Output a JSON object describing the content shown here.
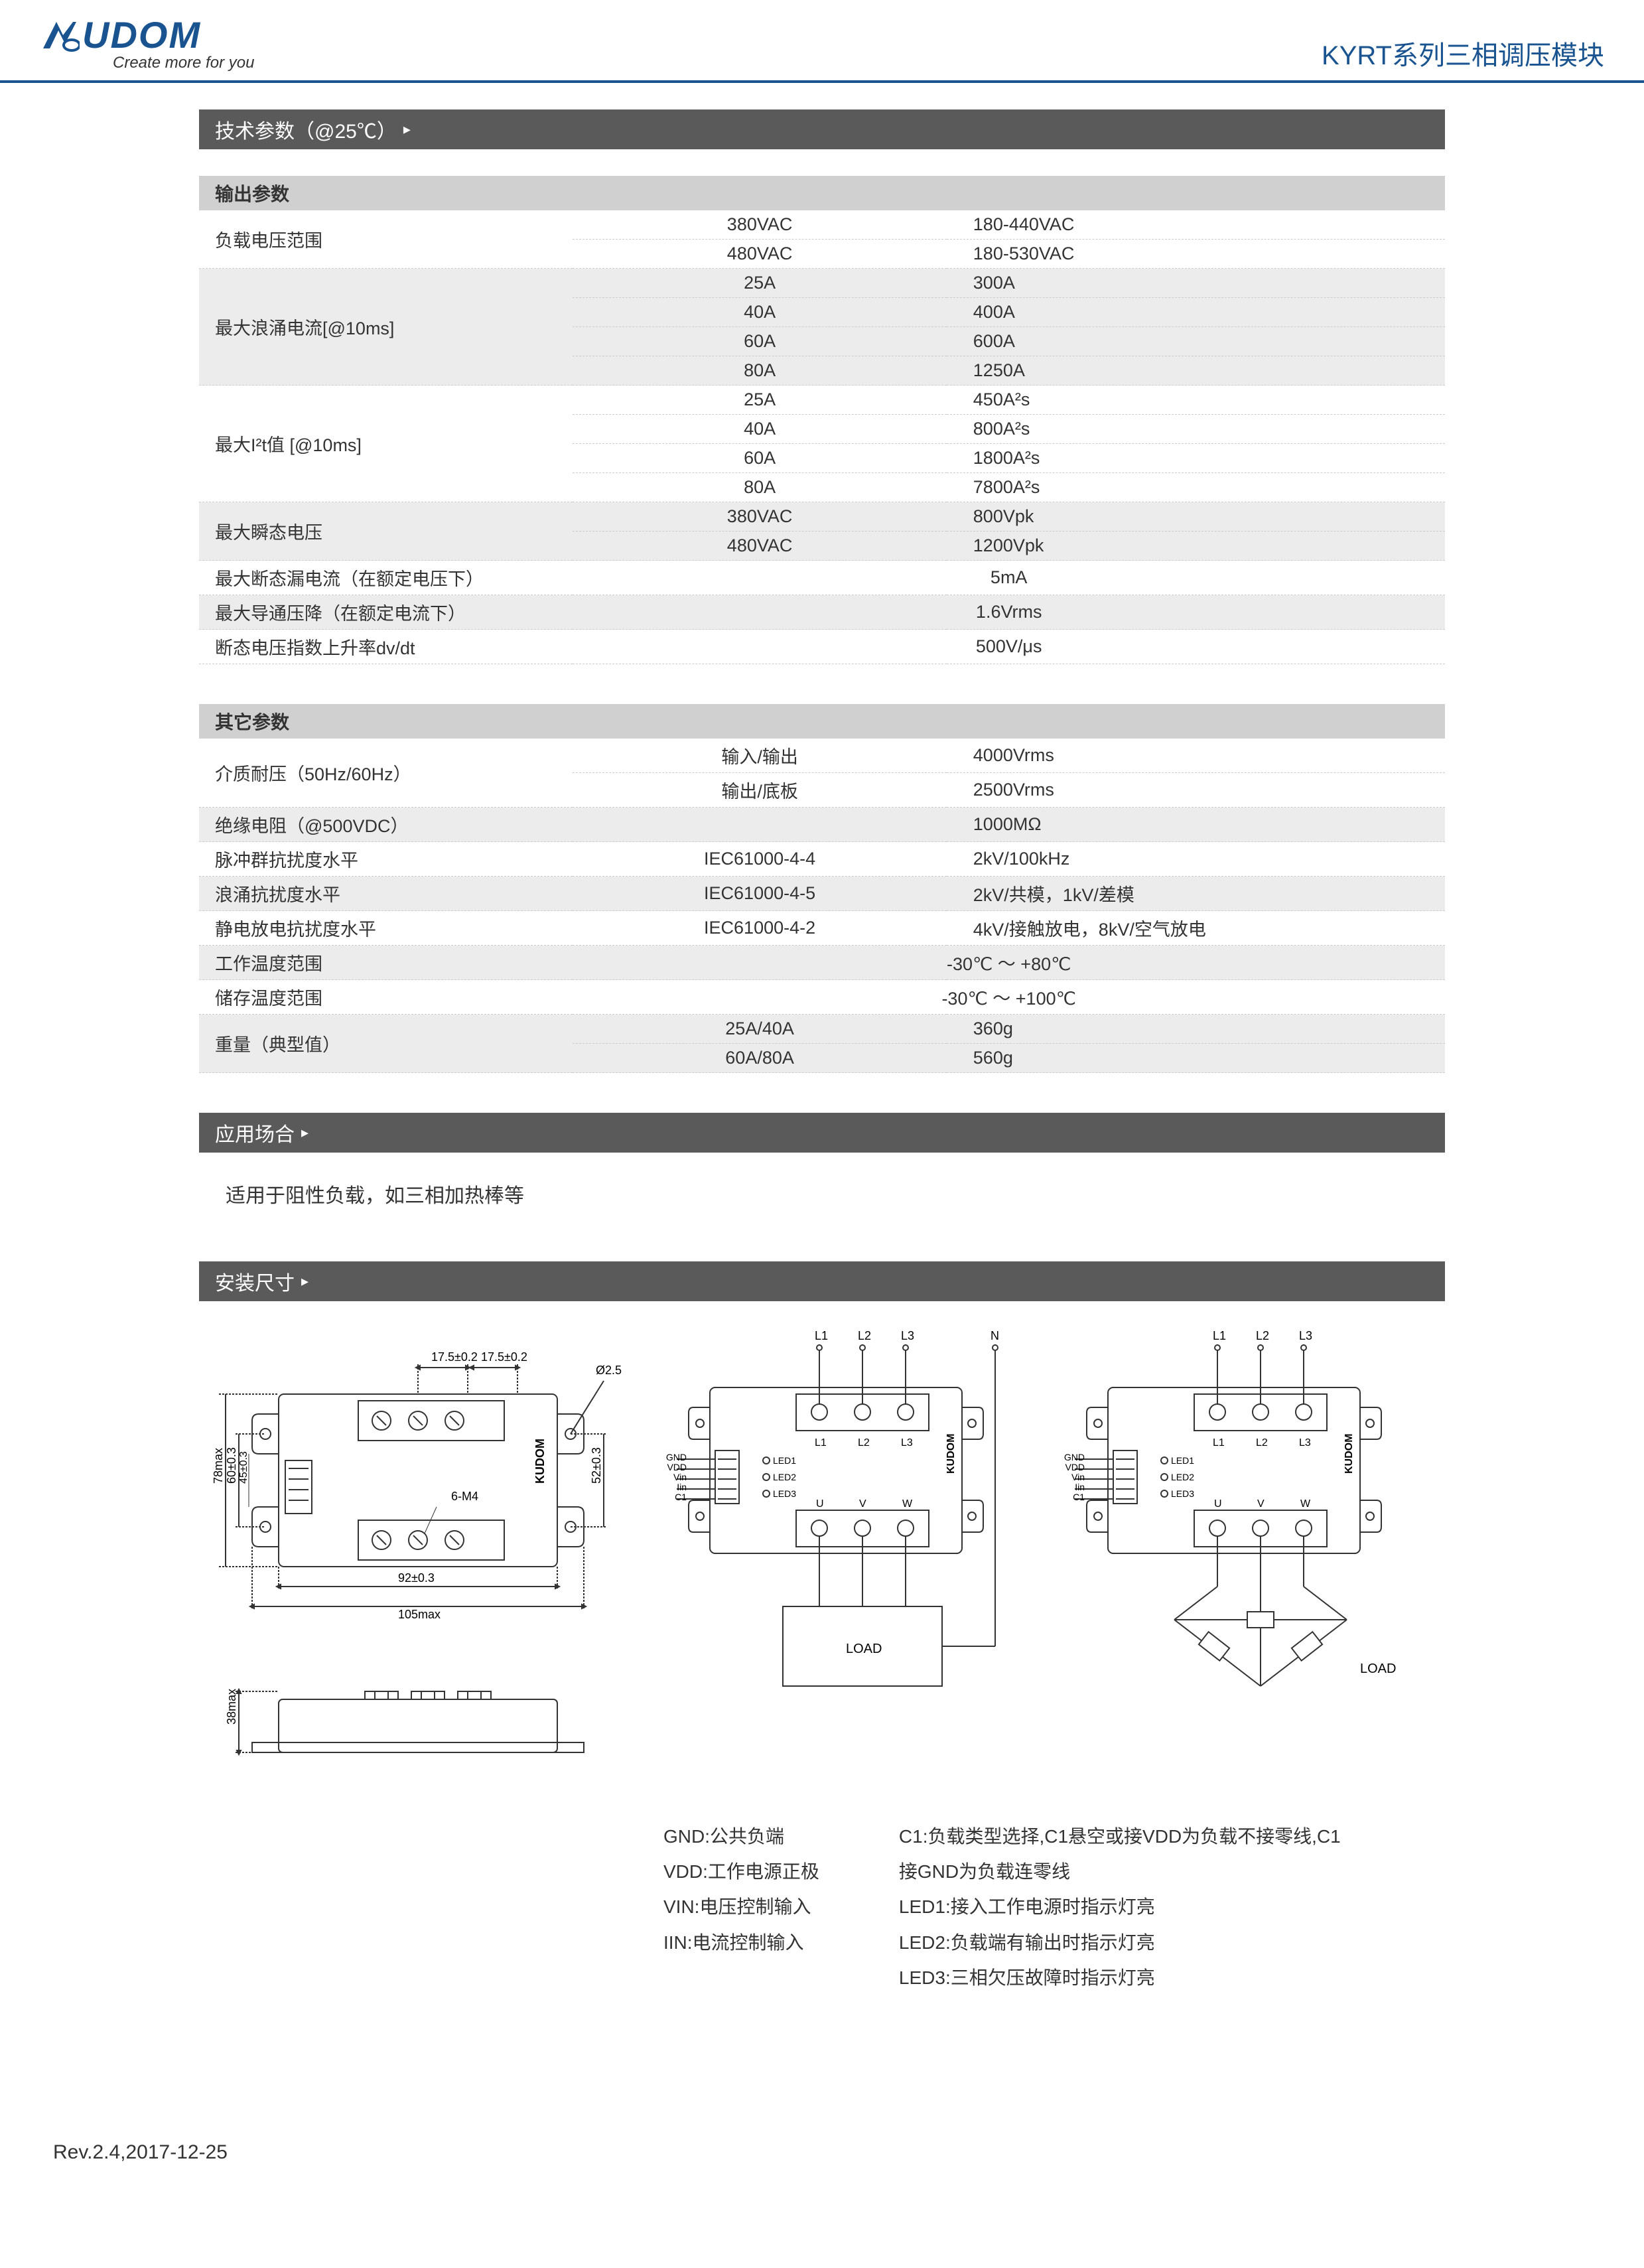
{
  "header": {
    "logo_text": "UDOM",
    "tagline": "Create more for you",
    "title": "KYRT系列三相调压模块"
  },
  "section1": {
    "title": "技术参数（@25℃）"
  },
  "table_output": {
    "header": "输出参数",
    "rows": [
      {
        "label": "负载电压范围",
        "shaded": false,
        "cells": [
          {
            "mid": "380VAC",
            "right": "180-440VAC"
          },
          {
            "mid": "480VAC",
            "right": "180-530VAC"
          }
        ]
      },
      {
        "label": "最大浪涌电流[@10ms]",
        "shaded": true,
        "cells": [
          {
            "mid": "25A",
            "right": "300A"
          },
          {
            "mid": "40A",
            "right": "400A"
          },
          {
            "mid": "60A",
            "right": "600A"
          },
          {
            "mid": "80A",
            "right": "1250A"
          }
        ]
      },
      {
        "label": "最大I²t值 [@10ms]",
        "shaded": false,
        "cells": [
          {
            "mid": "25A",
            "right": "450A²s"
          },
          {
            "mid": "40A",
            "right": "800A²s"
          },
          {
            "mid": "60A",
            "right": "1800A²s"
          },
          {
            "mid": "80A",
            "right": "7800A²s"
          }
        ]
      },
      {
        "label": "最大瞬态电压",
        "shaded": true,
        "cells": [
          {
            "mid": "380VAC",
            "right": "800Vpk"
          },
          {
            "mid": "480VAC",
            "right": "1200Vpk"
          }
        ]
      },
      {
        "label": "最大断态漏电流（在额定电压下）",
        "shaded": false,
        "span": "5mA"
      },
      {
        "label": "最大导通压降（在额定电流下）",
        "shaded": true,
        "span": "1.6Vrms"
      },
      {
        "label": "断态电压指数上升率dv/dt",
        "shaded": false,
        "span": "500V/μs"
      }
    ]
  },
  "table_other": {
    "header": "其它参数",
    "rows": [
      {
        "label": "介质耐压（50Hz/60Hz）",
        "shaded": false,
        "cells": [
          {
            "mid": "输入/输出",
            "right": "4000Vrms"
          },
          {
            "mid": "输出/底板",
            "right": "2500Vrms"
          }
        ]
      },
      {
        "label": "绝缘电阻（@500VDC）",
        "shaded": true,
        "cells": [
          {
            "mid": "",
            "right": "1000MΩ"
          }
        ]
      },
      {
        "label": "脉冲群抗扰度水平",
        "shaded": false,
        "cells": [
          {
            "mid": "IEC61000-4-4",
            "right": "2kV/100kHz"
          }
        ]
      },
      {
        "label": "浪涌抗扰度水平",
        "shaded": true,
        "cells": [
          {
            "mid": "IEC61000-4-5",
            "right": "2kV/共模，1kV/差模"
          }
        ]
      },
      {
        "label": "静电放电抗扰度水平",
        "shaded": false,
        "cells": [
          {
            "mid": "IEC61000-4-2",
            "right": "4kV/接触放电，8kV/空气放电"
          }
        ]
      },
      {
        "label": "工作温度范围",
        "shaded": true,
        "span": "-30℃ ～ +80℃"
      },
      {
        "label": "储存温度范围",
        "shaded": false,
        "span": "-30℃ ～ +100℃"
      },
      {
        "label": "重量（典型值）",
        "shaded": true,
        "cells": [
          {
            "mid": "25A/40A",
            "right": "360g"
          },
          {
            "mid": "60A/80A",
            "right": "560g"
          }
        ]
      }
    ]
  },
  "section2": {
    "title": "应用场合",
    "text": "适用于阻性负载，如三相加热棒等"
  },
  "section3": {
    "title": "安装尺寸"
  },
  "dim": {
    "w_inner": "92±0.3",
    "w_outer": "105max",
    "h_inner": "60±0.3",
    "h_inner2": "45±0.3",
    "h_outer": "78max",
    "tab_w": "17.5±0.2",
    "tab_w2": "17.5±0.2",
    "h_right": "52±0.3",
    "hole": "Ø2.5",
    "screw": "6-M4",
    "side_h": "38max",
    "brand": "KUDOM"
  },
  "wiring": {
    "L1": "L1",
    "L2": "L2",
    "L3": "L3",
    "N": "N",
    "U": "U",
    "V": "V",
    "W": "W",
    "GND": "GND",
    "VDD": "VDD",
    "Vin": "Vin",
    "Iin": "Iin",
    "C1": "C1",
    "LED1": "LED1",
    "LED2": "LED2",
    "LED3": "LED3",
    "LOAD": "LOAD",
    "brand": "KUDOM"
  },
  "legends": {
    "left": [
      "GND:公共负端",
      "VDD:工作电源正极",
      "VIN:电压控制输入",
      "IIN:电流控制输入"
    ],
    "right": [
      "C1:负载类型选择,C1悬空或接VDD为负载不接零线,C1",
      "接GND为负载连零线",
      "LED1:接入工作电源时指示灯亮",
      "LED2:负载端有输出时指示灯亮",
      "LED3:三相欠压故障时指示灯亮"
    ]
  },
  "footer": "Rev.2.4,2017-12-25",
  "colors": {
    "brand_blue": "#1a5490",
    "bar_gray": "#5a5a5a",
    "shade": "#ececec",
    "header_shade": "#d0d0d0"
  }
}
